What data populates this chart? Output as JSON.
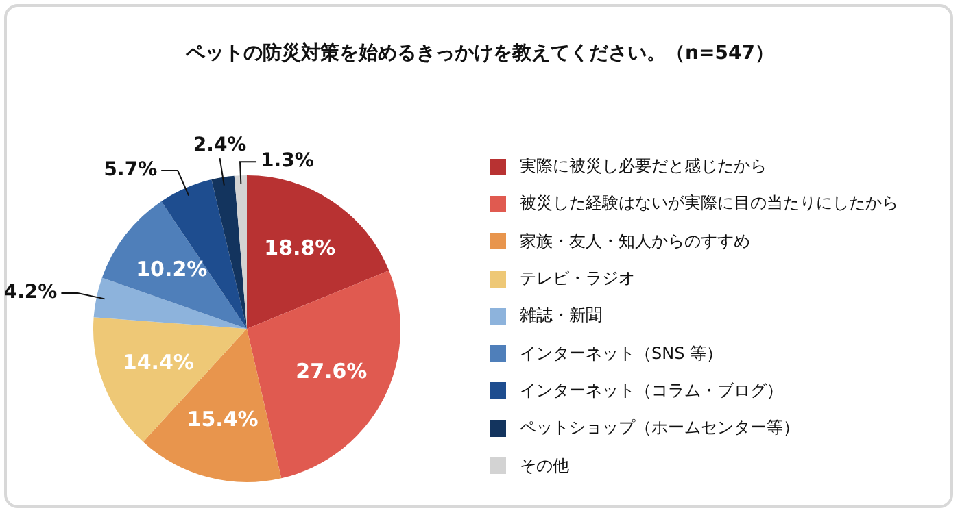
{
  "chart_data": {
    "type": "pie",
    "title": "ペットの防災対策を始めるきっかけを教えてください。（n=547）",
    "categories": [
      "実際に被災し必要だと感じたから",
      "被災した経験はないが実際に目の当たりにしたから",
      "家族・友人・知人からのすすめ",
      "テレビ・ラジオ",
      "雑誌・新聞",
      "インターネット（SNS 等）",
      "インターネット（コラム・ブログ）",
      "ペットショップ（ホームセンター等）",
      "その他"
    ],
    "values": [
      18.8,
      27.6,
      15.4,
      14.4,
      4.2,
      10.2,
      5.7,
      2.4,
      1.3
    ],
    "value_labels": [
      "18.8%",
      "27.6%",
      "15.4%",
      "14.4%",
      "4.2%",
      "10.2%",
      "5.7%",
      "2.4%",
      "1.3%"
    ],
    "colors": [
      "#b83232",
      "#e05a50",
      "#e8954d",
      "#eec876",
      "#8db3dc",
      "#4f7fba",
      "#1e4d8f",
      "#13345e",
      "#d3d3d3"
    ],
    "legend": "right"
  }
}
